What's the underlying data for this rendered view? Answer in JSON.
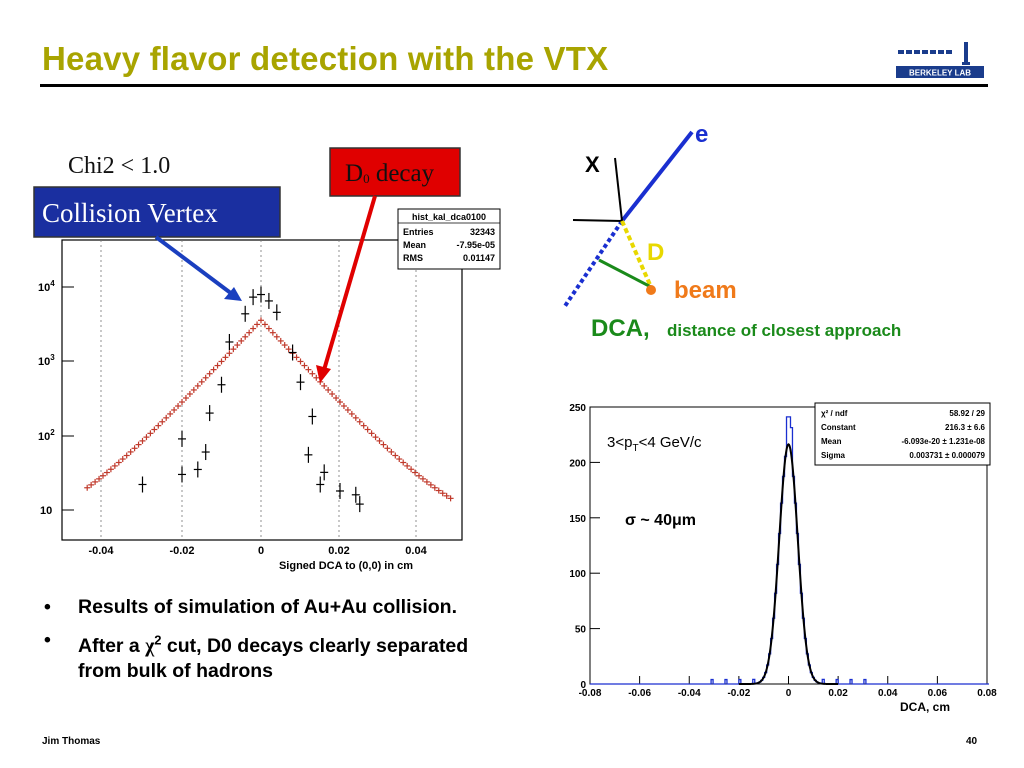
{
  "title": "Heavy flavor detection with the VTX",
  "logo": {
    "text": "BERKELEY LAB"
  },
  "left_plot": {
    "cut_label": "Chi2 < 1.0",
    "vertex_label": "Collision Vertex",
    "decay_label_main": "D",
    "decay_label_sub": "0",
    "decay_label_rest": " decay",
    "stats": {
      "name": "hist_kal_dca0100",
      "entries_label": "Entries",
      "entries": "32343",
      "mean_label": "Mean",
      "mean": "-7.95e-05",
      "rms_label": "RMS",
      "rms": "0.01147"
    },
    "xlabel": "Signed DCA to (0,0) in cm",
    "x_ticks": [
      "-0.04",
      "-0.02",
      "0",
      "0.02",
      "0.04"
    ],
    "y_ticks": [
      {
        "base": "10",
        "exp": "4"
      },
      {
        "base": "10",
        "exp": "3"
      },
      {
        "base": "10",
        "exp": "2"
      },
      {
        "base": "10",
        "exp": ""
      }
    ]
  },
  "diagram": {
    "e": "e",
    "x": "X",
    "d": "D",
    "beam": "beam",
    "dca": "DCA,",
    "dca_desc": "distance of closest approach"
  },
  "right_plot": {
    "pt_label_pre": "3<p",
    "pt_label_sub": "T",
    "pt_label_post": "<4 GeV/c",
    "sigma_label": "σ ~ 40μm",
    "stats": {
      "chi_label": "χ² / ndf",
      "chi": "58.92 / 29",
      "const_label": "Constant",
      "const": "216.3 ± 6.6",
      "mean_label": "Mean",
      "mean": "-6.093e-20 ± 1.231e-08",
      "sigma_label": "Sigma",
      "sigma": "0.003731 ± 0.000079"
    },
    "xlabel": "DCA, cm",
    "x_ticks": [
      "-0.08",
      "-0.06",
      "-0.04",
      "-0.02",
      "0",
      "0.02",
      "0.04",
      "0.06",
      "0.08"
    ],
    "y_ticks": [
      "0",
      "50",
      "100",
      "150",
      "200",
      "250"
    ]
  },
  "bullets": [
    {
      "text": "Results of simulation of Au+Au collision."
    },
    {
      "pre": "After a ",
      "chi": "χ",
      "sup": "2",
      "post": " cut, D0 decays clearly separated from bulk of hadrons"
    }
  ],
  "bullet_marker": "•",
  "footer": {
    "author": "Jim Thomas",
    "page": "40"
  }
}
